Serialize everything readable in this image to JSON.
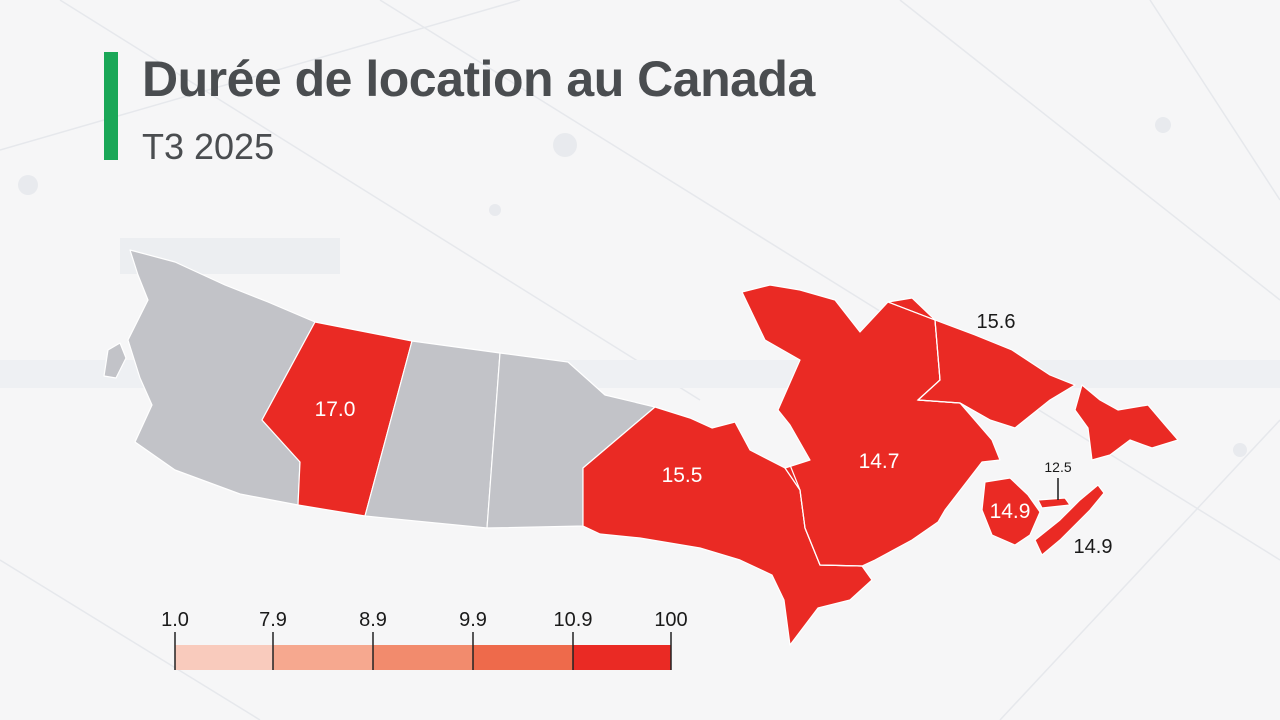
{
  "header": {
    "title": "Durée de location au Canada",
    "subtitle": "T3 2025"
  },
  "colors": {
    "accent_bar": "#1aa757",
    "no_data": "#c2c3c8",
    "high": "#ea2a24",
    "title_text": "#4a4d50",
    "legend_steps": [
      "#f9cbbd",
      "#f6a88f",
      "#f28b6d",
      "#ee6a4b",
      "#ea2a24"
    ]
  },
  "map_data": {
    "regions": [
      {
        "id": "bc",
        "label": "",
        "has_value": false
      },
      {
        "id": "ab",
        "label": "17.0",
        "has_value": true
      },
      {
        "id": "sk",
        "label": "",
        "has_value": false
      },
      {
        "id": "mb",
        "label": "",
        "has_value": false
      },
      {
        "id": "on",
        "label": "15.5",
        "has_value": true
      },
      {
        "id": "qc",
        "label": "14.7",
        "has_value": true
      },
      {
        "id": "nl",
        "label": "15.6",
        "has_value": true
      },
      {
        "id": "nb",
        "label": "14.9",
        "has_value": true
      },
      {
        "id": "pe",
        "label": "12.5",
        "has_value": true
      },
      {
        "id": "ns",
        "label": "14.9",
        "has_value": true
      }
    ]
  },
  "legend": {
    "ticks": [
      "1.0",
      "7.9",
      "8.9",
      "9.9",
      "10.9",
      "100"
    ]
  }
}
